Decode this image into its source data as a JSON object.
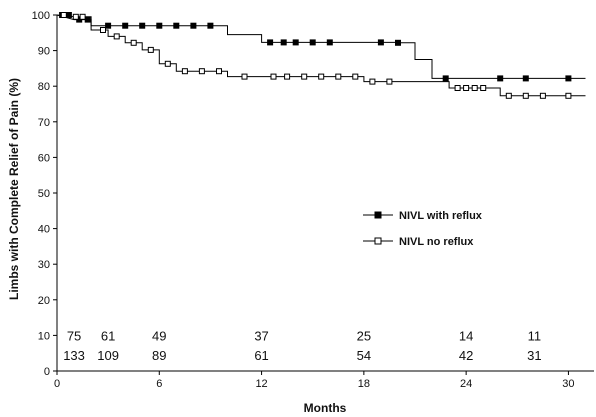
{
  "chart_data": {
    "type": "line",
    "subtype": "step (Kaplan-Meier)",
    "xlabel": "Months",
    "ylabel": "Limbs with Complete Relief of Pain (%)",
    "xlim": [
      0,
      31.5
    ],
    "ylim": [
      0,
      100
    ],
    "x_ticks": [
      0,
      6,
      12,
      18,
      24,
      30
    ],
    "y_ticks": [
      0,
      10,
      20,
      30,
      40,
      50,
      60,
      70,
      80,
      90,
      100
    ],
    "grid": false,
    "legend_position": "center-right",
    "series": [
      {
        "name": "NIVL with reflux",
        "marker": "filled-square",
        "color": "#000000",
        "steps": [
          [
            0,
            100
          ],
          [
            1,
            98.7
          ],
          [
            2,
            98.7
          ],
          [
            2,
            97
          ],
          [
            10,
            97
          ],
          [
            10,
            94.5
          ],
          [
            12,
            94.5
          ],
          [
            12,
            92.3
          ],
          [
            20,
            92.3
          ],
          [
            20,
            92.2
          ],
          [
            21,
            92.2
          ],
          [
            21,
            87.5
          ],
          [
            22,
            87.5
          ],
          [
            22,
            82.2
          ],
          [
            31,
            82.2
          ]
        ],
        "censor_x": [
          0.3,
          0.7,
          1.3,
          1.8,
          3,
          4,
          5,
          6,
          7,
          8,
          9,
          12.5,
          13.3,
          14,
          15,
          16,
          19,
          20,
          22.8,
          26,
          27.5,
          30
        ]
      },
      {
        "name": "NIVL no reflux",
        "marker": "open-square",
        "color": "#000000",
        "steps": [
          [
            0,
            100
          ],
          [
            1,
            99.5
          ],
          [
            2,
            99.5
          ],
          [
            2,
            95.8
          ],
          [
            3,
            95.8
          ],
          [
            3,
            94
          ],
          [
            4,
            94
          ],
          [
            4,
            92.2
          ],
          [
            5,
            92.2
          ],
          [
            5,
            90.2
          ],
          [
            6,
            90.2
          ],
          [
            6,
            86.3
          ],
          [
            7,
            86.3
          ],
          [
            7,
            84.2
          ],
          [
            10,
            84.2
          ],
          [
            10,
            82.7
          ],
          [
            18,
            82.7
          ],
          [
            18,
            81.3
          ],
          [
            23,
            81.3
          ],
          [
            23,
            79.5
          ],
          [
            26,
            79.5
          ],
          [
            26,
            77.3
          ],
          [
            31,
            77.3
          ]
        ],
        "censor_x": [
          0.4,
          1.1,
          1.5,
          2.7,
          3.5,
          4.5,
          5.5,
          6.5,
          7.5,
          8.5,
          9.5,
          11,
          12.7,
          13.5,
          14.5,
          15.5,
          16.5,
          17.5,
          18.5,
          19.5,
          23.5,
          24,
          24.5,
          25,
          26.5,
          27.5,
          28.5,
          30
        ]
      }
    ],
    "at_risk": [
      {
        "series": "NIVL with reflux",
        "y": 10,
        "x": [
          1,
          3,
          6,
          12,
          18,
          24,
          28
        ],
        "values": [
          "75",
          "61",
          "49",
          "37",
          "25",
          "14",
          "11"
        ]
      },
      {
        "series": "NIVL no reflux",
        "y": 4.5,
        "x": [
          1,
          3,
          6,
          12,
          18,
          24,
          28
        ],
        "values": [
          "133",
          "109",
          "89",
          "61",
          "54",
          "42",
          "31"
        ]
      }
    ]
  }
}
